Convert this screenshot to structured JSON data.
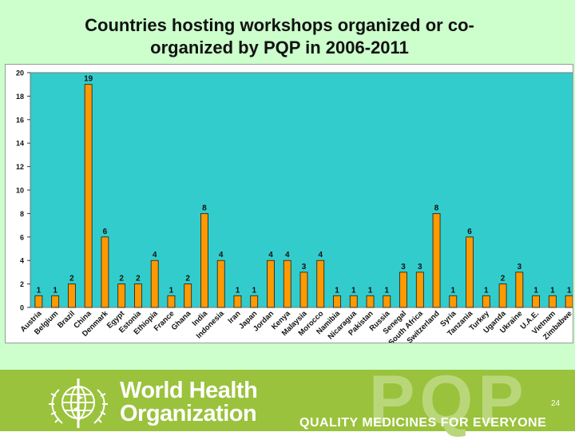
{
  "slide": {
    "title": "Countries hosting workshops organized or co-organized by PQP in 2006-2011",
    "page_number": "24"
  },
  "footer": {
    "org_line1": "World Health",
    "org_line2": "Organization",
    "brand_mark": "PQP",
    "tagline": "QUALITY MEDICINES FOR EVERYONE",
    "colors": {
      "band": "#9ac23c",
      "mark": "#b9d77a",
      "text": "#ffffff"
    },
    "logo_icon": "who-emblem-icon"
  },
  "chart_data": {
    "type": "bar",
    "title": "",
    "xlabel": "",
    "ylabel": "",
    "ylim": [
      0,
      20
    ],
    "yticks": [
      0,
      2,
      4,
      6,
      8,
      10,
      12,
      14,
      16,
      18,
      20
    ],
    "grid": false,
    "legend": "none",
    "colors": {
      "plot_bg": "#33cccc",
      "bar": "#ff9900",
      "bar_edge": "#1a1a1a"
    },
    "categories": [
      "Austria",
      "Belgium",
      "Brazil",
      "China",
      "Denmark",
      "Egypt",
      "Estonia",
      "Ethiopia",
      "France",
      "Ghana",
      "India",
      "Indonesia",
      "Iran",
      "Japan",
      "Jordan",
      "Kenya",
      "Malaysia",
      "Morocco",
      "Namibia",
      "Nicaragua",
      "Pakistan",
      "Russia",
      "Senegal",
      "South Africa",
      "Switzerland",
      "Syria",
      "Tanzania",
      "Turkey",
      "Uganda",
      "Ukraine",
      "U.A.E.",
      "Vietnam",
      "Zimbabwe"
    ],
    "values": [
      1,
      1,
      2,
      19,
      6,
      2,
      2,
      4,
      1,
      2,
      8,
      4,
      1,
      1,
      4,
      4,
      3,
      4,
      1,
      1,
      1,
      1,
      3,
      3,
      8,
      1,
      6,
      1,
      2,
      3,
      1,
      1,
      1
    ]
  }
}
